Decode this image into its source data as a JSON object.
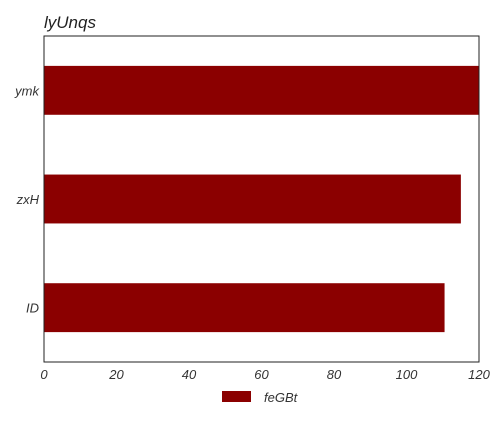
{
  "chart_data": {
    "type": "bar",
    "orientation": "horizontal",
    "title": "lyUnqs",
    "xlabel": "",
    "ylabel": "",
    "categories": [
      "ID",
      "zxH",
      "ymk"
    ],
    "series": [
      {
        "name": "feGBt",
        "values": [
          110.5,
          115,
          120
        ],
        "color": "#8b0000"
      }
    ],
    "xlim": [
      0,
      120
    ],
    "xticks": [
      "0",
      "20",
      "40",
      "60",
      "80",
      "100",
      "120"
    ],
    "grid": false,
    "legend_position": "bottom-center"
  }
}
